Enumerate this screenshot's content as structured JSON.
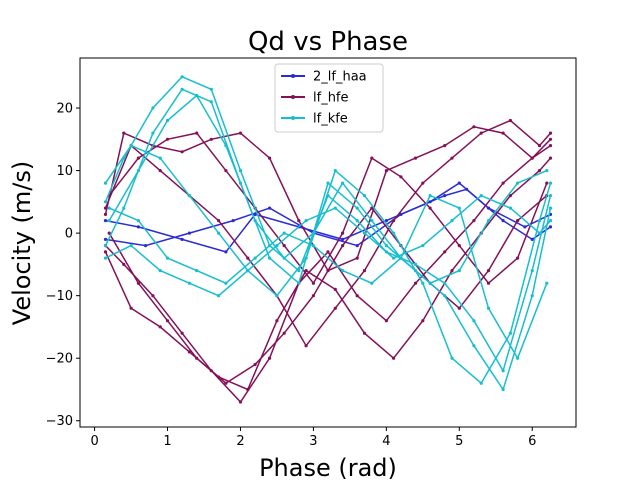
{
  "chart_data": {
    "type": "line",
    "title": "Qd vs Phase",
    "xlabel": "Phase (rad)",
    "ylabel": "Velocity (m/s)",
    "xlim": [
      -0.2,
      6.6
    ],
    "ylim": [
      -31,
      28
    ],
    "xticks": [
      0,
      1,
      2,
      3,
      4,
      5,
      6
    ],
    "yticks": [
      -30,
      -20,
      -10,
      0,
      10,
      20
    ],
    "grid": false,
    "legend_position": "top-center",
    "series": [
      {
        "name": "2_lf_haa",
        "color": "#2b2bd6",
        "traces": [
          {
            "x": [
              0.15,
              0.6,
              1.2,
              1.8,
              2.2,
              2.8,
              3.4,
              4.0,
              4.6,
              5.0,
              5.4,
              5.9,
              6.25
            ],
            "y": [
              2,
              1,
              -1,
              -3,
              3,
              1,
              -1,
              2,
              5,
              8,
              4,
              1,
              3
            ]
          },
          {
            "x": [
              0.15,
              0.7,
              1.3,
              1.9,
              2.4,
              3.0,
              3.6,
              4.2,
              4.8,
              5.1,
              5.6,
              6.0,
              6.25
            ],
            "y": [
              -1,
              -2,
              0,
              2,
              4,
              0,
              -2,
              3,
              6,
              7,
              2,
              -1,
              1
            ]
          }
        ]
      },
      {
        "name": "lf_hfe",
        "color": "#841158",
        "traces": [
          {
            "x": [
              0.15,
              0.4,
              0.8,
              1.2,
              1.6,
              2.0,
              2.4,
              2.8,
              3.2,
              3.6,
              4.0,
              4.4,
              4.8,
              5.2,
              5.6,
              6.0,
              6.25
            ],
            "y": [
              3,
              16,
              14,
              13,
              15,
              16,
              12,
              2,
              -6,
              -4,
              10,
              12,
              14,
              17,
              16,
              12,
              15
            ]
          },
          {
            "x": [
              0.15,
              0.4,
              0.8,
              1.2,
              1.6,
              2.0,
              2.4,
              2.8,
              3.2,
              3.6,
              4.0,
              4.4,
              4.8,
              5.2,
              5.6,
              6.0,
              6.25
            ],
            "y": [
              -2,
              -5,
              -10,
              -16,
              -22,
              -27,
              -20,
              -8,
              -3,
              -10,
              -14,
              -8,
              -3,
              2,
              8,
              12,
              14
            ]
          },
          {
            "x": [
              0.15,
              0.5,
              0.9,
              1.3,
              1.7,
              2.1,
              2.5,
              2.9,
              3.3,
              3.7,
              4.1,
              4.5,
              4.9,
              5.3,
              5.7,
              6.1,
              6.25
            ],
            "y": [
              4,
              14,
              10,
              6,
              2,
              -4,
              -10,
              -18,
              -12,
              -6,
              2,
              8,
              12,
              16,
              18,
              14,
              16
            ]
          },
          {
            "x": [
              0.15,
              0.5,
              0.9,
              1.3,
              1.7,
              2.1,
              2.5,
              2.9,
              3.3,
              3.7,
              4.1,
              4.5,
              4.9,
              5.3,
              5.7,
              6.1,
              6.25
            ],
            "y": [
              -3,
              -12,
              -15,
              -19,
              -23,
              -25,
              -14,
              -6,
              -9,
              -16,
              -20,
              -14,
              -6,
              0,
              6,
              10,
              12
            ]
          },
          {
            "x": [
              0.2,
              0.6,
              1.0,
              1.4,
              1.8,
              2.2,
              2.6,
              3.0,
              3.4,
              3.8,
              4.2,
              4.6,
              5.0,
              5.4,
              5.8,
              6.2
            ],
            "y": [
              6,
              12,
              15,
              16,
              10,
              4,
              -2,
              -8,
              0,
              12,
              9,
              4,
              -2,
              -8,
              -4,
              8
            ]
          },
          {
            "x": [
              0.2,
              0.6,
              1.0,
              1.4,
              1.8,
              2.2,
              2.6,
              3.0,
              3.4,
              3.8,
              4.2,
              4.6,
              5.0,
              5.4,
              5.8,
              6.2
            ],
            "y": [
              0,
              -8,
              -14,
              -20,
              -24,
              -21,
              -16,
              -10,
              -2,
              4,
              -2,
              -8,
              -12,
              -6,
              2,
              6
            ]
          }
        ]
      },
      {
        "name": "lf_kfe",
        "color": "#17becf",
        "traces": [
          {
            "x": [
              0.15,
              0.4,
              0.8,
              1.2,
              1.6,
              2.0,
              2.4,
              2.8,
              3.2,
              3.6,
              4.0,
              4.4,
              4.8,
              5.2,
              5.6,
              6.0,
              6.25
            ],
            "y": [
              5,
              12,
              20,
              25,
              23,
              10,
              -2,
              -6,
              6,
              2,
              -3,
              -5,
              -8,
              -14,
              -22,
              -6,
              6
            ]
          },
          {
            "x": [
              0.15,
              0.4,
              0.8,
              1.2,
              1.6,
              2.0,
              2.4,
              2.8,
              3.2,
              3.6,
              4.0,
              4.4,
              4.8,
              5.2,
              5.6,
              6.0,
              6.25
            ],
            "y": [
              -2,
              4,
              16,
              23,
              21,
              8,
              -4,
              -8,
              8,
              4,
              -2,
              -6,
              -10,
              -18,
              -25,
              -10,
              4
            ]
          },
          {
            "x": [
              0.15,
              0.5,
              0.9,
              1.3,
              1.7,
              2.1,
              2.5,
              2.9,
              3.3,
              3.7,
              4.1,
              4.5,
              4.9,
              5.3,
              5.7,
              6.1,
              6.25
            ],
            "y": [
              8,
              14,
              12,
              6,
              0,
              -6,
              -10,
              -4,
              10,
              6,
              0,
              -8,
              -20,
              -24,
              -16,
              2,
              8
            ]
          },
          {
            "x": [
              0.15,
              0.5,
              0.9,
              1.3,
              1.7,
              2.1,
              2.5,
              2.9,
              3.3,
              3.7,
              4.1,
              4.5,
              4.9,
              5.3,
              5.7,
              6.1,
              6.25
            ],
            "y": [
              -4,
              -2,
              -6,
              -8,
              -10,
              -6,
              -2,
              2,
              4,
              0,
              -4,
              -2,
              2,
              6,
              4,
              0,
              2
            ]
          },
          {
            "x": [
              0.2,
              0.6,
              1.0,
              1.4,
              1.8,
              2.2,
              2.6,
              3.0,
              3.4,
              3.8,
              4.2,
              4.6,
              5.0,
              5.4,
              5.8,
              6.2
            ],
            "y": [
              2,
              10,
              18,
              22,
              14,
              2,
              -4,
              0,
              8,
              2,
              -4,
              -8,
              -6,
              2,
              8,
              10
            ]
          },
          {
            "x": [
              0.2,
              0.6,
              1.0,
              1.4,
              1.8,
              2.2,
              2.6,
              3.0,
              3.4,
              3.8,
              4.2,
              4.6,
              5.0,
              5.4,
              5.8,
              6.2
            ],
            "y": [
              4,
              2,
              -4,
              -6,
              -8,
              -4,
              0,
              -2,
              -6,
              -8,
              -4,
              6,
              4,
              -12,
              -20,
              -8
            ]
          }
        ]
      }
    ]
  }
}
